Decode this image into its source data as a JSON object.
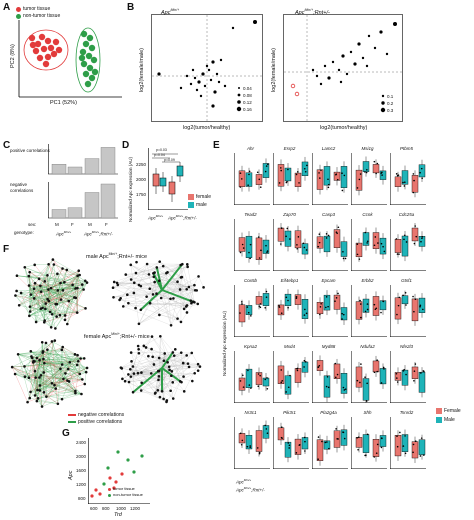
{
  "colors": {
    "tumor": "#e23b3b",
    "nontumor": "#2e9e48",
    "female": "#e8756e",
    "male": "#1fb3b8",
    "bar": "#c6c6c6",
    "net_gray": "#9a9a9a"
  },
  "panel_labels": [
    "A",
    "B",
    "C",
    "D",
    "E",
    "F",
    "G"
  ],
  "panelA": {
    "legend": [
      "tumor tissue",
      "non-tumor tissue"
    ],
    "xlabel": "PC1 (52%)",
    "ylabel": "PC2 (8%)"
  },
  "panelB": {
    "left_title": "Apc",
    "left_title_sup": "Min/+",
    "right_title": "Apc",
    "right_title_sup": "Min/+",
    "right_title_suffix": ";Rnt+/-",
    "ylabel": "log2(female/male)",
    "xlabel": "log2(tumor/healthy)",
    "left_legend": [
      "0.04",
      "0.08",
      "0.12",
      "0.16"
    ],
    "right_legend": [
      "0.1",
      "0.2",
      "0.3"
    ]
  },
  "panelC": {
    "pos_label": "positive correlations",
    "neg_label": "negative correlations",
    "sex_row_label": "sex:",
    "genotype_row_label": "genotype:",
    "sex": [
      "M",
      "F",
      "M",
      "F"
    ],
    "genotypes": [
      "Apc",
      "Apc"
    ],
    "genotype_sups": [
      "Min/+",
      "Min/+"
    ],
    "genotype_suffix": ";Rnt+/-",
    "pos_values": [
      0.35,
      0.25,
      0.55,
      0.95
    ],
    "neg_values": [
      0.25,
      0.3,
      0.75,
      1.0
    ]
  },
  "panelD": {
    "ylabel": "Normalized Apc expression (AU)",
    "yticks": [
      "2250",
      "2000",
      "1750"
    ],
    "legend": [
      "female",
      "male"
    ],
    "xticklabels": [
      "Apc",
      "Apc"
    ],
    "xtick_sups": [
      "Min/+",
      "Min/+"
    ],
    "xtick_suffix": ";Rnt+/-",
    "pvals": [
      "p=0.03",
      "p=0.04",
      "p=0.09"
    ]
  },
  "panelE": {
    "ylabel": "Normalized Apc expression (AU)",
    "legend": [
      "Female",
      "Male"
    ],
    "genes": [
      "Ahr",
      "Esrp2",
      "Lamc2",
      "Msi1g",
      "Ptbm5",
      "Tead2",
      "Zap70",
      "Casp3",
      "Ccnk",
      "Cdc25a",
      "Cox5b",
      "Eif4ebp1",
      "Epcam",
      "Erbb2",
      "Gtsf1",
      "Kpna2",
      "Mxd4",
      "Myd88",
      "Ndufa2",
      "Nfe2l3",
      "Nr3c1",
      "Pik3r1",
      "Pla2g4a",
      "Shh",
      "Tsnrd2"
    ],
    "xticklabels": [
      "Apc",
      "Apc"
    ],
    "xtick_sups": [
      "Min/+",
      "Min/+"
    ],
    "xtick_suffix": ";Rnt+/-"
  },
  "panelF": {
    "male_title": "male Apc",
    "male_title_sup": "Min/+",
    "male_title_suffix": ";Rnt+/- mice",
    "female_title": "female Apc",
    "female_title_sup": "Min/+",
    "female_title_suffix": ";Rnt+/- mice",
    "legend": [
      "negative correlations",
      "positive correlations"
    ]
  },
  "panelG": {
    "ylabel": "Apc",
    "xlabel": "Trd",
    "yticks": [
      "2400",
      "2000",
      "1600",
      "1200",
      "800"
    ],
    "xticks": [
      "600",
      "800",
      "1000",
      "1200"
    ],
    "legend": [
      "tumor tissue",
      "non-tumor tissue"
    ]
  }
}
